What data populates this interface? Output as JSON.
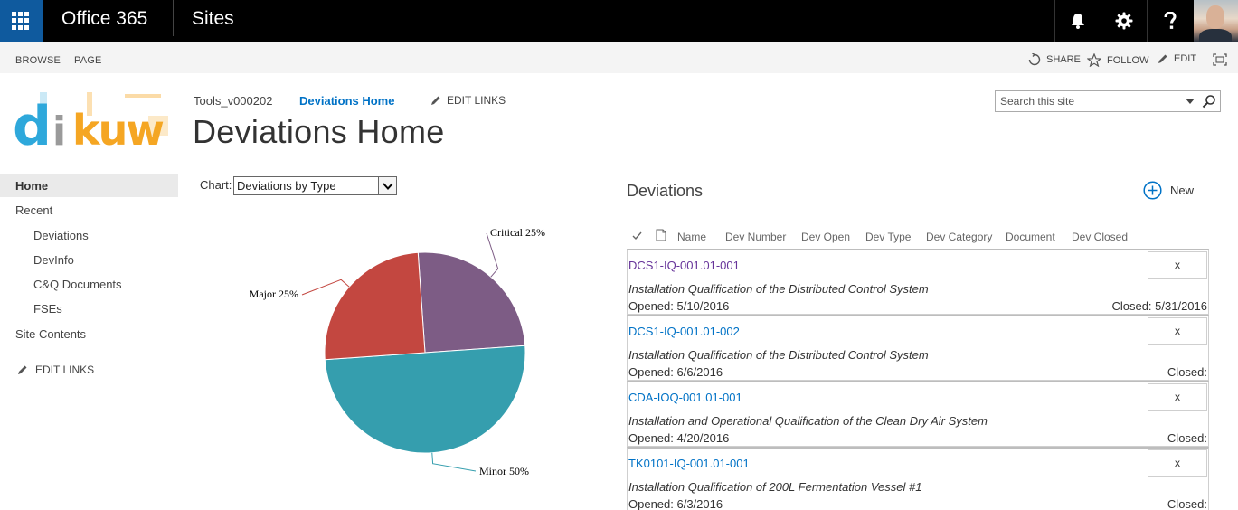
{
  "suite": {
    "brand": "Office 365",
    "app": "Sites"
  },
  "ribbon": {
    "browse": "BROWSE",
    "page": "PAGE",
    "share": "SHARE",
    "follow": "FOLLOW",
    "edit": "EDIT"
  },
  "header": {
    "crumb_tools": "Tools_v000202",
    "crumb_home": "Deviations Home",
    "edit_links": "EDIT LINKS",
    "title": "Deviations Home",
    "search_placeholder": "Search this site"
  },
  "nav": {
    "home": "Home",
    "recent": "Recent",
    "deviations": "Deviations",
    "devinfo": "DevInfo",
    "cq_documents": "C&Q Documents",
    "fses": "FSEs",
    "site_contents": "Site Contents",
    "edit_links": "EDIT LINKS"
  },
  "chart": {
    "label": "Chart:",
    "selected": "Deviations by Type"
  },
  "chart_data": {
    "type": "pie",
    "categories": [
      "Critical",
      "Major",
      "Minor"
    ],
    "values": [
      25,
      25,
      50
    ],
    "labels": [
      "Critical 25%",
      "Major 25%",
      "Minor 50%"
    ],
    "colors": [
      "#7d5c85",
      "#c34740",
      "#359eae"
    ]
  },
  "list": {
    "title": "Deviations",
    "new_label": "New",
    "columns": [
      "Name",
      "Dev Number",
      "Dev Open",
      "Dev Type",
      "Dev Category",
      "Document",
      "Dev Closed"
    ],
    "items": [
      {
        "id": "DCS1-IQ-001.01-001",
        "x": "x",
        "desc": "Installation Qualification of the Distributed Control System",
        "opened": "Opened: 5/10/2016",
        "closed": "Closed: 5/31/2016"
      },
      {
        "id": "DCS1-IQ-001.01-002",
        "x": "x",
        "desc": "Installation Qualification of the Distributed Control System",
        "opened": "Opened: 6/6/2016",
        "closed": "Closed:"
      },
      {
        "id": "CDA-IOQ-001.01-001",
        "x": "x",
        "desc": "Installation and Operational Qualification of the Clean Dry Air System",
        "opened": "Opened: 4/20/2016",
        "closed": "Closed:"
      },
      {
        "id": "TK0101-IQ-001.01-001",
        "x": "x",
        "desc": "Installation Qualification of 200L Fermentation Vessel #1",
        "opened": "Opened: 6/3/2016",
        "closed": "Closed:"
      }
    ]
  }
}
